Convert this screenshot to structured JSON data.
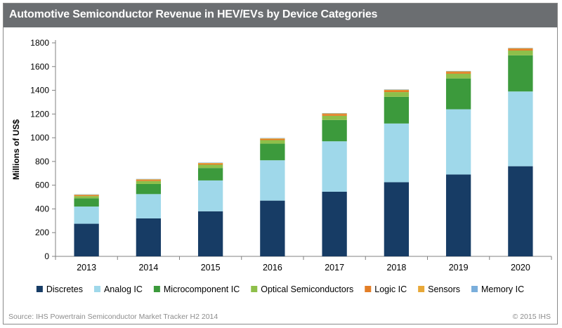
{
  "header": {
    "title": "Automotive Semiconductor Revenue in HEV/EVs by Device Categories"
  },
  "chart_data": {
    "type": "bar",
    "stacked": true,
    "title": "Automotive Semiconductor Revenue in HEV/EVs by Device Categories",
    "xlabel": "",
    "ylabel": "Millions of US$",
    "ylim": [
      0,
      1800
    ],
    "yticks": [
      0,
      200,
      400,
      600,
      800,
      1000,
      1200,
      1400,
      1600,
      1800
    ],
    "grid": false,
    "legend_position": "bottom",
    "categories": [
      "2013",
      "2014",
      "2015",
      "2016",
      "2017",
      "2018",
      "2019",
      "2020"
    ],
    "series": [
      {
        "name": "Discretes",
        "color": "#173c65",
        "values": [
          275,
          320,
          380,
          470,
          545,
          625,
          690,
          760
        ]
      },
      {
        "name": "Analog IC",
        "color": "#9fd8ea",
        "values": [
          145,
          205,
          260,
          340,
          425,
          495,
          550,
          630
        ]
      },
      {
        "name": "Microcomponent IC",
        "color": "#3c9a3c",
        "values": [
          70,
          85,
          105,
          140,
          180,
          225,
          260,
          305
        ]
      },
      {
        "name": "Optical Semiconductors",
        "color": "#8ebf4a",
        "values": [
          18,
          25,
          28,
          30,
          35,
          40,
          40,
          40
        ]
      },
      {
        "name": "Logic IC",
        "color": "#e37e26",
        "values": [
          7,
          10,
          10,
          10,
          15,
          15,
          15,
          15
        ]
      },
      {
        "name": "Sensors",
        "color": "#e8a838",
        "values": [
          5,
          5,
          5,
          5,
          5,
          5,
          5,
          5
        ]
      },
      {
        "name": "Memory IC",
        "color": "#7aaedb",
        "values": [
          3,
          3,
          3,
          3,
          3,
          3,
          3,
          3
        ]
      }
    ]
  },
  "footer": {
    "source": "Source: IHS Powertrain Semiconductor Market Tracker H2 2014",
    "copyright": "© 2015 IHS"
  }
}
